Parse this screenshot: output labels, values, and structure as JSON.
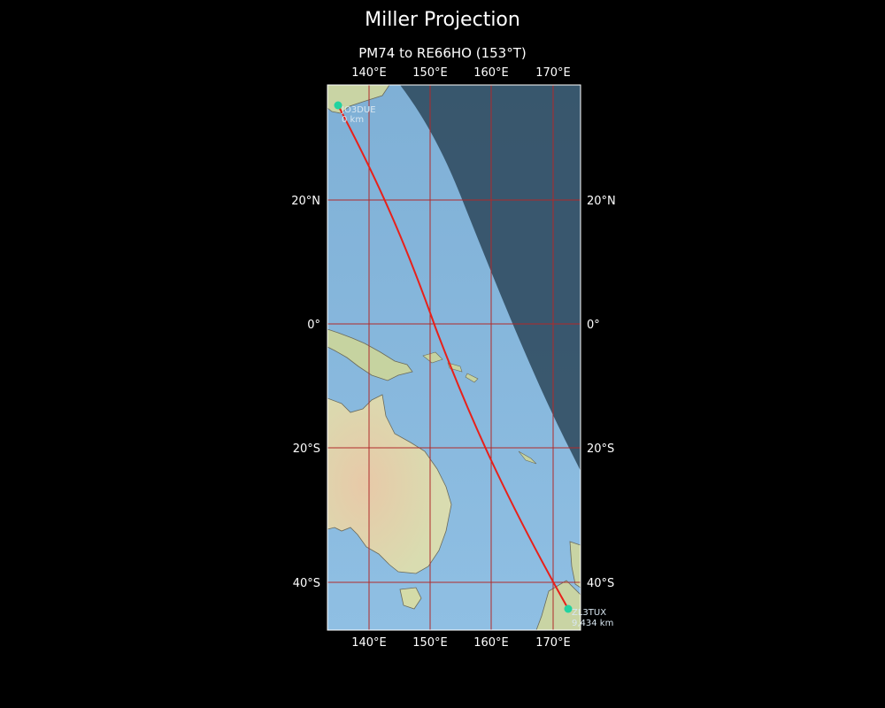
{
  "title": "Miller Projection",
  "subtitle": "PM74 to RE66HO (153°T)",
  "lon_labels": [
    "140°E",
    "150°E",
    "160°E",
    "170°E"
  ],
  "lat_labels": [
    "20°N",
    "0°",
    "20°S",
    "40°S"
  ],
  "stations": {
    "start": {
      "call": "JO3DUE",
      "dist": "0 km"
    },
    "end": {
      "call": "ZL3TUX",
      "dist": "9,434 km"
    }
  },
  "colors": {
    "background": "#000000",
    "ocean": "#86b6dc",
    "land": "#d9dcb0",
    "night": "#2f4a5e",
    "grid": "#b02a2a",
    "path": "#e8201a",
    "station": "#22d3a0"
  }
}
